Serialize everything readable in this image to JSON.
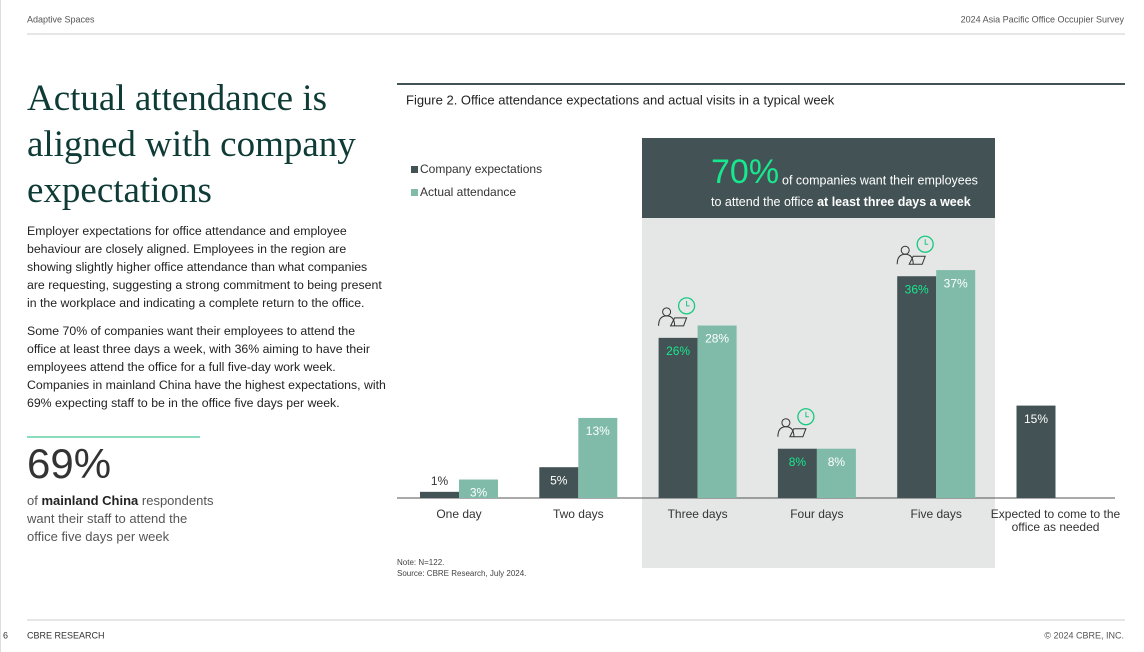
{
  "header": {
    "left": "Adaptive Spaces",
    "right": "2024 Asia Pacific Office Occupier Survey"
  },
  "title": "Actual attendance is aligned with company expectations",
  "paragraphs": [
    "Employer expectations for office attendance and employee behaviour are closely aligned. Employees in the region are showing slightly higher office attendance than what companies are requesting, suggesting a strong commitment to being present in the workplace and indicating a complete return to the office.",
    "Some 70% of companies want their employees to attend the office at least three days a week, with 36% aiming to have their employees attend the office for a full five-day work week. Companies in mainland China have the highest expectations, with 69% expecting staff to be in the office five days per week."
  ],
  "stat": {
    "value": "69%",
    "text_before": "of",
    "text_bold": "mainland China",
    "text_after": "respondents want their staff to attend the office five days per week"
  },
  "chart_data": {
    "type": "bar",
    "title": "Figure 2. Office attendance expectations and actual visits in a typical week",
    "categories": [
      "One day",
      "Two days",
      "Three days",
      "Four days",
      "Five days",
      "Expected to come to the office as needed"
    ],
    "series": [
      {
        "name": "Company expectations",
        "color": "#435254",
        "values": [
          1,
          5,
          26,
          8,
          36,
          15
        ],
        "value_labels": [
          "1%",
          "5%",
          "26%",
          "8%",
          "36%",
          "15%"
        ]
      },
      {
        "name": "Actual attendance",
        "color": "#80bba9",
        "values": [
          3,
          13,
          28,
          8,
          37,
          null
        ],
        "value_labels": [
          "3%",
          "13%",
          "28%",
          "8%",
          "37%",
          null
        ]
      }
    ],
    "callout": {
      "value": "70%",
      "text": "of companies want their employees",
      "text2": "to attend the office",
      "text_bold": "at least three days a week"
    },
    "note": "Note: N=122.",
    "source": "Source: CBRE Research, July 2024."
  },
  "footer": {
    "page": "6",
    "left": "CBRE RESEARCH",
    "right": "© 2024 CBRE, INC."
  }
}
